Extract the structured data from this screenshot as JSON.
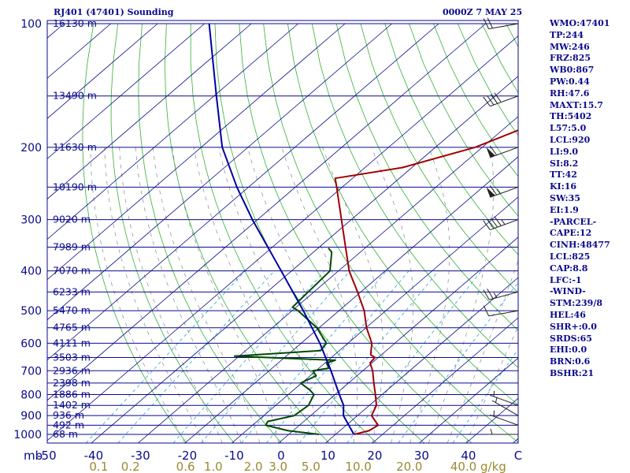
{
  "header": {
    "station": "RJ401 (47401) Sounding",
    "time": "0000Z  7 MAY 25"
  },
  "stats": [
    "WMO:47401",
    "TP:244",
    "MW:246",
    "FRZ:825",
    "WB0:867",
    "PW:0.44",
    "RH:47.6",
    "MAXT:15.7",
    "TH:5402",
    "L57:5.0",
    "LCL:920",
    "LI:9.0",
    "SI:8.2",
    "TT:42",
    "KI:16",
    "SW:35",
    "EI:1.9",
    "-PARCEL-",
    "CAPE:12",
    "CINH:48477",
    "LCL:825",
    "CAP:8.8",
    "LFC:-1",
    "-WIND-",
    "STM:239/8",
    "HEL:46",
    "SHR+:0.0",
    "SRDS:65",
    "EHI:0.0",
    "BRN:0.6",
    "BSHR:21"
  ],
  "chart_data": {
    "type": "line",
    "xlabel": "",
    "ylabel": "mb",
    "x_unit_label": "C",
    "mixing_ratio_unit": "g/kg",
    "pressure_levels": [
      100,
      200,
      300,
      400,
      500,
      600,
      700,
      800,
      900,
      1000
    ],
    "height_labels": [
      {
        "p": 100,
        "label": "16130 m"
      },
      {
        "p": 150,
        "label": "13490 m"
      },
      {
        "p": 200,
        "label": "11630 m"
      },
      {
        "p": 250,
        "label": "10190 m"
      },
      {
        "p": 300,
        "label": "9020 m"
      },
      {
        "p": 350,
        "label": "7989 m"
      },
      {
        "p": 400,
        "label": "7070 m"
      },
      {
        "p": 450,
        "label": "6233 m"
      },
      {
        "p": 500,
        "label": "5470 m"
      },
      {
        "p": 550,
        "label": "4765 m"
      },
      {
        "p": 600,
        "label": "4111 m"
      },
      {
        "p": 650,
        "label": "3503 m"
      },
      {
        "p": 700,
        "label": "2936 m"
      },
      {
        "p": 750,
        "label": "2398 m"
      },
      {
        "p": 800,
        "label": "1886 m"
      },
      {
        "p": 850,
        "label": "1402 m"
      },
      {
        "p": 900,
        "label": "936 m"
      },
      {
        "p": 950,
        "label": "492 m"
      },
      {
        "p": 1000,
        "label": "68 m"
      }
    ],
    "temperature_ticks": [
      "-50",
      "-40",
      "-30",
      "-20",
      "-10",
      "0",
      "10",
      "20",
      "30",
      "40"
    ],
    "mixing_ratio_ticks": [
      "0.1",
      "0.2",
      "0.6",
      "1.0",
      "2.0",
      "3.0",
      "5.0",
      "10.0",
      "20.0",
      "40.0"
    ],
    "series": [
      {
        "color": "#a00000",
        "points": [
          {
            "p": 1000,
            "t": 14.0
          },
          {
            "p": 980,
            "t": 16.2
          },
          {
            "p": 950,
            "t": 16.8
          },
          {
            "p": 900,
            "t": 13.0
          },
          {
            "p": 850,
            "t": 11.5
          },
          {
            "p": 800,
            "t": 8.6
          },
          {
            "p": 750,
            "t": 5.4
          },
          {
            "p": 700,
            "t": 2.1
          },
          {
            "p": 670,
            "t": -0.4
          },
          {
            "p": 650,
            "t": -0.7
          },
          {
            "p": 640,
            "t": -2.3
          },
          {
            "p": 600,
            "t": -4.9
          },
          {
            "p": 550,
            "t": -9.9
          },
          {
            "p": 500,
            "t": -14.6
          },
          {
            "p": 450,
            "t": -20.7
          },
          {
            "p": 400,
            "t": -27.7
          },
          {
            "p": 350,
            "t": -34.4
          },
          {
            "p": 300,
            "t": -42.1
          },
          {
            "p": 250,
            "t": -51.2
          },
          {
            "p": 238,
            "t": -53.7
          },
          {
            "p": 224,
            "t": -42.0
          },
          {
            "p": 200,
            "t": -31.5
          },
          {
            "p": 150,
            "t": -16.7
          },
          {
            "p": 100,
            "t": 1.5
          }
        ]
      },
      {
        "color": "#004a00",
        "points": [
          {
            "p": 1000,
            "t": 6.4
          },
          {
            "p": 980,
            "t": -1.0
          },
          {
            "p": 950,
            "t": -7.2
          },
          {
            "p": 930,
            "t": -7.7
          },
          {
            "p": 900,
            "t": -3.5
          },
          {
            "p": 850,
            "t": -3.0
          },
          {
            "p": 800,
            "t": -4.5
          },
          {
            "p": 780,
            "t": -6.5
          },
          {
            "p": 750,
            "t": -10.2
          },
          {
            "p": 720,
            "t": -8.7
          },
          {
            "p": 700,
            "t": -10.7
          },
          {
            "p": 690,
            "t": -7.9
          },
          {
            "p": 670,
            "t": -9.7
          },
          {
            "p": 660,
            "t": -8.5
          },
          {
            "p": 645,
            "t": -31.0
          },
          {
            "p": 625,
            "t": -14.0
          },
          {
            "p": 600,
            "t": -14.6
          },
          {
            "p": 550,
            "t": -20.5
          },
          {
            "p": 500,
            "t": -28.7
          },
          {
            "p": 490,
            "t": -30.8
          },
          {
            "p": 400,
            "t": -31.8
          },
          {
            "p": 360,
            "t": -36.1
          },
          {
            "p": 352,
            "t": -37.8
          }
        ]
      },
      {
        "color": "#0000a0",
        "points": [
          {
            "p": 1000,
            "t": 13.9
          },
          {
            "p": 900,
            "t": 7.0
          },
          {
            "p": 850,
            "t": 4.5
          },
          {
            "p": 800,
            "t": 0.9
          },
          {
            "p": 700,
            "t": -6.8
          },
          {
            "p": 600,
            "t": -16.0
          },
          {
            "p": 500,
            "t": -27.6
          },
          {
            "p": 400,
            "t": -42.2
          },
          {
            "p": 300,
            "t": -61.1
          },
          {
            "p": 250,
            "t": -72.5
          },
          {
            "p": 200,
            "t": -85.5
          },
          {
            "p": 150,
            "t": -99.5
          },
          {
            "p": 100,
            "t": -119.0
          }
        ]
      }
    ],
    "wind_barbs": [
      {
        "p": 1000,
        "dir": 270,
        "speed": 5
      },
      {
        "p": 950,
        "dir": 290,
        "speed": 5
      },
      {
        "p": 900,
        "dir": 300,
        "speed": 5
      },
      {
        "p": 850,
        "dir": 290,
        "speed": 5
      },
      {
        "p": 500,
        "dir": 260,
        "speed": 10
      },
      {
        "p": 450,
        "dir": 255,
        "speed": 25
      },
      {
        "p": 300,
        "dir": 250,
        "speed": 45
      },
      {
        "p": 250,
        "dir": 250,
        "speed": 65
      },
      {
        "p": 200,
        "dir": 250,
        "speed": 60
      },
      {
        "p": 150,
        "dir": 250,
        "speed": 40
      },
      {
        "p": 100,
        "dir": 260,
        "speed": 20
      }
    ]
  }
}
